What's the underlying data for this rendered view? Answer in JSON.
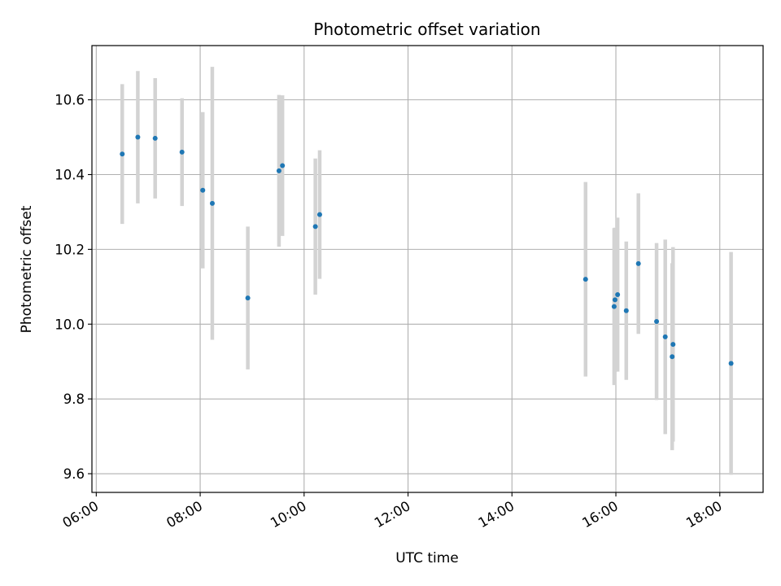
{
  "chart_data": {
    "type": "scatter",
    "title": "Photometric offset variation",
    "xlabel": "UTC time",
    "ylabel": "Photometric offset",
    "xlim": [
      "05:55",
      "18:50"
    ],
    "ylim": [
      9.55,
      10.745
    ],
    "x_ticks": [
      "06:00",
      "08:00",
      "10:00",
      "12:00",
      "14:00",
      "16:00",
      "18:00"
    ],
    "y_ticks": [
      "9.6",
      "9.8",
      "10.0",
      "10.2",
      "10.4",
      "10.6"
    ],
    "grid": true,
    "point_color": "#1f77b4",
    "errorbar_color": "#d3d3d3",
    "points": [
      {
        "x": "06:30",
        "y": 10.455,
        "yerr": 0.187
      },
      {
        "x": "06:48",
        "y": 10.5,
        "yerr": 0.177
      },
      {
        "x": "07:08",
        "y": 10.497,
        "yerr": 0.161
      },
      {
        "x": "07:39",
        "y": 10.46,
        "yerr": 0.144
      },
      {
        "x": "08:03",
        "y": 10.358,
        "yerr": 0.209
      },
      {
        "x": "08:14",
        "y": 10.323,
        "yerr": 0.365
      },
      {
        "x": "08:55",
        "y": 10.07,
        "yerr": 0.191
      },
      {
        "x": "09:31",
        "y": 10.41,
        "yerr": 0.203
      },
      {
        "x": "09:35",
        "y": 10.424,
        "yerr": 0.188
      },
      {
        "x": "10:13",
        "y": 10.261,
        "yerr": 0.182
      },
      {
        "x": "10:18",
        "y": 10.293,
        "yerr": 0.172
      },
      {
        "x": "15:25",
        "y": 10.12,
        "yerr": 0.26
      },
      {
        "x": "15:58",
        "y": 10.047,
        "yerr": 0.21
      },
      {
        "x": "15:59",
        "y": 10.065,
        "yerr": 0.193
      },
      {
        "x": "16:02",
        "y": 10.079,
        "yerr": 0.206
      },
      {
        "x": "16:12",
        "y": 10.036,
        "yerr": 0.185
      },
      {
        "x": "16:26",
        "y": 10.162,
        "yerr": 0.188
      },
      {
        "x": "16:47",
        "y": 10.007,
        "yerr": 0.21
      },
      {
        "x": "16:57",
        "y": 9.966,
        "yerr": 0.26
      },
      {
        "x": "17:05",
        "y": 9.913,
        "yerr": 0.25
      },
      {
        "x": "17:06",
        "y": 9.946,
        "yerr": 0.26
      },
      {
        "x": "18:13",
        "y": 9.895,
        "yerr": 0.298
      }
    ]
  }
}
